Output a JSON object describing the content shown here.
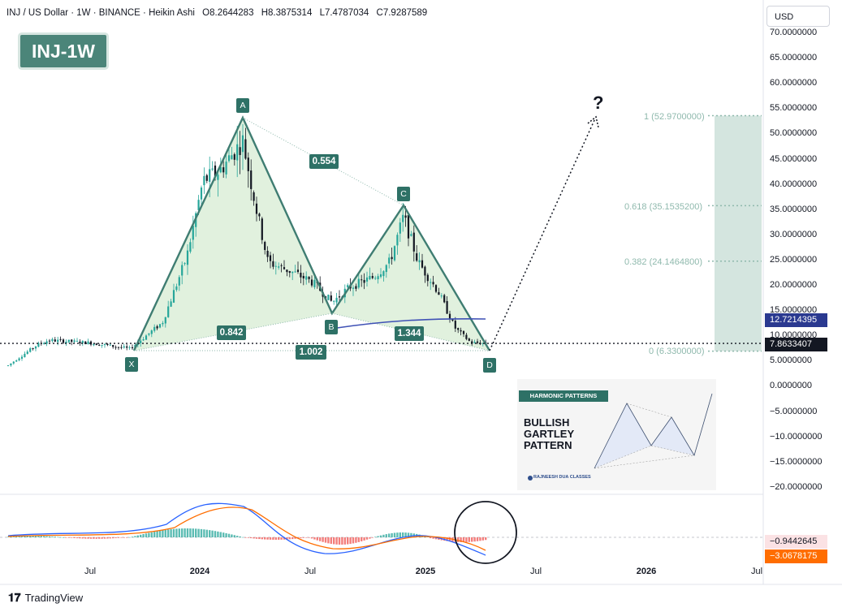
{
  "header": {
    "symbol": "INJ / US Dollar · 1W · BINANCE · Heikin Ashi",
    "open": "O8.2644283",
    "high": "H8.3875314",
    "low": "L7.4787034",
    "close": "C7.9287589"
  },
  "currency_button": "USD",
  "title_badge": "INJ-1W",
  "pattern_points": {
    "A": "A",
    "B": "B",
    "C": "C",
    "D": "D",
    "X": "X"
  },
  "ratios": {
    "xb": "0.842",
    "ac": "0.554",
    "bd": "1.344",
    "xd": "1.002"
  },
  "projection_mark": "?",
  "fib_levels": [
    {
      "label": "1 (52.9700000)",
      "value": 52.97
    },
    {
      "label": "0.618 (35.1535200)",
      "value": 35.15352
    },
    {
      "label": "0.382 (24.1464800)",
      "value": 24.14648
    },
    {
      "label": "0 (6.3300000)",
      "value": 6.33
    }
  ],
  "y_axis_labels": [
    "70.0000000",
    "65.0000000",
    "60.0000000",
    "55.0000000",
    "50.0000000",
    "45.0000000",
    "40.0000000",
    "35.0000000",
    "30.0000000",
    "25.0000000",
    "20.0000000",
    "15.0000000",
    "10.0000000",
    "5.0000000",
    "0.0000000",
    "−5.0000000",
    "−10.0000000",
    "−15.0000000",
    "−20.0000000"
  ],
  "price_tags": {
    "ma_value": "12.7214395",
    "last_price": "7.8633407",
    "macd_value": "−0.9442645",
    "signal_value": "−3.0678175"
  },
  "x_axis_labels": [
    {
      "label": "Jul",
      "bold": false
    },
    {
      "label": "2024",
      "bold": true
    },
    {
      "label": "Jul",
      "bold": false
    },
    {
      "label": "2025",
      "bold": true
    },
    {
      "label": "Jul",
      "bold": false
    },
    {
      "label": "2026",
      "bold": true
    },
    {
      "label": "Jul",
      "bold": false
    }
  ],
  "inset": {
    "header": "HARMONIC PATTERNS",
    "title_lines": [
      "BULLISH",
      "GARTLEY",
      "PATTERN"
    ],
    "brand": "RAJNEESH DUA CLASSES"
  },
  "footer": {
    "logo": "TradingView"
  },
  "colors": {
    "pattern_fill": "#d9eed6",
    "pattern_line": "#3f7d72",
    "label_badge": "#2e7166",
    "up_candle": "#26a69a",
    "down_candle": "#131722",
    "ma_line": "#3f51b5",
    "fib_fill": "#cfe2dc",
    "macd_line": "#2962ff",
    "signal_line": "#ff6d00",
    "hist_up": "#26a69a",
    "hist_down": "#ef5350"
  }
}
